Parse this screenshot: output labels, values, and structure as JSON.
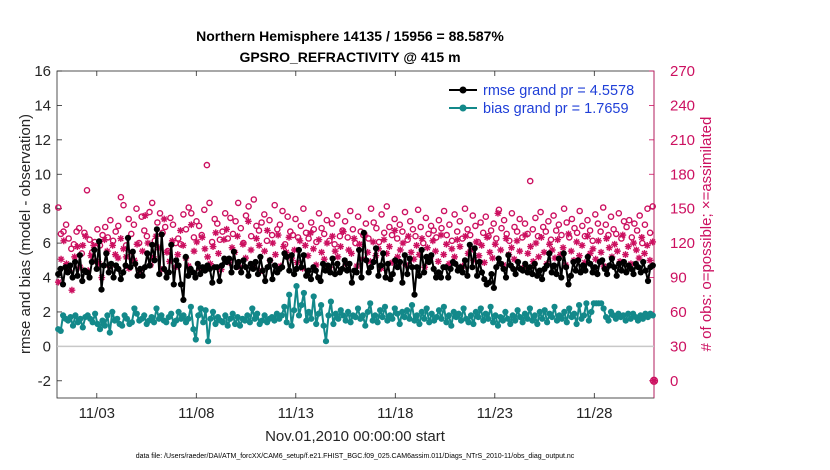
{
  "chart_data": {
    "type": "line",
    "title": "Northern Hemisphere 14135 / 15956 = 88.587%",
    "subtitle": "GPSRO_REFRACTIVITY @ 415 m",
    "xlabel": "Nov.01,2010 00:00:00 start",
    "ylabel_left": "rmse and bias (model - observation)",
    "ylabel_right": "# of obs: o=possible; ×=assimilated",
    "footnote": "data file: /Users/raeder/DAI/ATM_forcXX/CAM6_setup/f.e21.FHIST_BGC.f09_025.CAM6assim.011/Diags_NTrS_2010-11/obs_diag_output.nc",
    "x_day_range": [
      1.0,
      31.0
    ],
    "ylim_left": [
      -3,
      16
    ],
    "ylim_right": [
      -15,
      270
    ],
    "x_tick_days": [
      3,
      8,
      13,
      18,
      23,
      28
    ],
    "x_tick_labels": [
      "11/03",
      "11/08",
      "11/13",
      "11/18",
      "11/23",
      "11/28"
    ],
    "y_left_ticks": [
      -2,
      0,
      2,
      4,
      6,
      8,
      10,
      12,
      14,
      16
    ],
    "y_left_tick_labels": [
      "-2",
      "0",
      "2",
      "4",
      "6",
      "8",
      "10",
      "12",
      "14",
      "16"
    ],
    "y_right_ticks": [
      0,
      30,
      60,
      90,
      120,
      150,
      180,
      210,
      240,
      270
    ],
    "y_right_tick_labels": [
      "0",
      "30",
      "60",
      "90",
      "120",
      "150",
      "180",
      "210",
      "240",
      "270"
    ],
    "zero_line": 0,
    "series": [
      {
        "name": "rmse grand pr = 4.5578",
        "axis": "left",
        "color": "#000000",
        "marker": "filled-circle",
        "values": [
          4.2,
          4.5,
          3.6,
          4.6,
          4.3,
          4.7,
          4.0,
          4.9,
          4.1,
          5.3,
          3.8,
          4.4,
          4.3,
          4.0,
          4.9,
          5.6,
          4.5,
          6.1,
          3.3,
          4.7,
          5.4,
          4.3,
          4.8,
          4.0,
          4.7,
          4.5,
          3.9,
          4.3,
          4.7,
          6.3,
          4.6,
          5.5,
          4.8,
          4.1,
          4.5,
          4.1,
          4.6,
          5.4,
          4.7,
          5.9,
          5.0,
          6.8,
          4.2,
          6.5,
          4.5,
          4.0,
          4.3,
          5.9,
          3.6,
          5.0,
          4.7,
          3.6,
          2.7,
          5.2,
          4.1,
          4.5,
          4.3,
          4.0,
          4.8,
          4.2,
          4.6,
          4.4,
          4.7,
          4.5,
          3.7,
          4.6,
          4.6,
          3.8,
          4.7,
          5.1,
          4.9,
          5.1,
          4.3,
          5.5,
          4.6,
          4.9,
          4.3,
          5.0,
          4.6,
          4.1,
          4.8,
          4.5,
          4.9,
          4.2,
          5.2,
          4.4,
          3.8,
          4.6,
          5.0,
          3.9,
          4.7,
          4.3,
          4.5,
          4.6,
          5.4,
          5.2,
          4.4,
          5.3,
          4.2,
          4.5,
          5.6,
          4.6,
          5.3,
          4.1,
          4.4,
          3.9,
          4.6,
          4.4,
          4.0,
          3.8,
          4.8,
          4.4,
          4.7,
          4.3,
          5.1,
          4.2,
          4.8,
          4.3,
          4.5,
          5.0,
          4.4,
          4.8,
          3.7,
          4.4,
          4.3,
          5.6,
          4.0,
          6.6,
          5.0,
          4.3,
          4.6,
          4.9,
          5.7,
          4.1,
          4.7,
          5.4,
          4.0,
          4.8,
          3.9,
          4.2,
          5.0,
          4.6,
          4.9,
          3.7,
          5.3,
          4.2,
          5.1,
          4.6,
          3.0,
          4.6,
          4.1,
          5.6,
          4.3,
          5.2,
          4.9,
          5.3,
          4.5,
          4.0,
          4.3,
          4.0,
          4.6,
          4.6,
          4.0,
          4.5,
          4.9,
          4.8,
          4.4,
          4.6,
          4.3,
          5.0,
          4.1,
          5.9,
          4.6,
          5.7,
          4.1,
          4.9,
          4.3,
          3.9,
          3.6,
          3.7,
          4.2,
          3.4,
          4.6,
          5.1,
          4.8,
          4.5,
          4.0,
          5.3,
          4.7,
          4.5,
          4.2,
          4.9,
          4.5,
          4.4,
          4.8,
          4.3,
          4.6,
          4.2,
          4.8,
          4.1,
          4.4,
          3.9,
          4.5,
          4.7,
          5.4,
          4.3,
          4.7,
          4.2,
          5.1,
          4.0,
          5.4,
          4.6,
          3.6,
          4.1,
          4.9,
          4.4,
          5.0,
          4.3,
          4.7,
          4.4,
          5.2,
          4.8,
          4.3,
          4.6,
          4.2,
          4.9,
          5.0,
          4.5,
          4.2,
          4.7,
          5.1,
          4.6,
          4.1,
          4.8,
          4.4,
          4.9,
          4.3,
          4.7,
          4.5,
          4.2,
          4.8,
          4.6,
          4.3,
          4.9,
          4.4,
          3.8,
          4.6,
          4.7
        ]
      },
      {
        "name": "bias grand pr = 1.7659",
        "axis": "left",
        "color": "#13898a",
        "marker": "filled-circle",
        "values": [
          1.0,
          0.9,
          1.8,
          1.6,
          1.5,
          1.7,
          1.2,
          1.8,
          1.4,
          1.6,
          1.1,
          1.7,
          1.8,
          1.6,
          1.4,
          1.9,
          1.3,
          1.0,
          1.5,
          1.2,
          1.8,
          0.8,
          2.0,
          1.5,
          1.6,
          1.3,
          1.2,
          1.8,
          1.6,
          1.3,
          1.4,
          2.2,
          1.9,
          1.5,
          1.6,
          1.8,
          1.3,
          1.5,
          1.7,
          1.4,
          2.2,
          1.6,
          1.8,
          1.5,
          1.4,
          1.7,
          1.9,
          1.3,
          1.5,
          2.0,
          1.6,
          1.8,
          1.4,
          1.6,
          2.3,
          1.0,
          0.4,
          1.8,
          2.2,
          1.4,
          2.1,
          0.3,
          1.6,
          2.0,
          1.3,
          1.7,
          1.5,
          1.4,
          1.8,
          1.2,
          1.6,
          1.9,
          1.3,
          1.7,
          1.2,
          1.6,
          1.5,
          1.8,
          1.4,
          2.2,
          1.6,
          1.9,
          1.3,
          1.5,
          1.8,
          1.4,
          1.6,
          1.7,
          1.5,
          1.9,
          1.6,
          1.8,
          2.3,
          1.4,
          3.0,
          1.2,
          2.1,
          3.5,
          1.8,
          2.4,
          3.1,
          1.5,
          2.0,
          1.6,
          2.9,
          1.3,
          1.9,
          2.4,
          1.2,
          0.3,
          1.8,
          2.6,
          1.3,
          1.9,
          1.6,
          2.1,
          1.8,
          1.5,
          2.0,
          1.4,
          1.8,
          1.7,
          2.2,
          1.6,
          1.8,
          1.2,
          2.0,
          2.5,
          1.5,
          1.8,
          1.4,
          2.1,
          1.7,
          2.3,
          1.5,
          1.8,
          1.6,
          2.2,
          1.9,
          1.3,
          2.0,
          1.7,
          2.1,
          1.6,
          2.4,
          1.5,
          1.8,
          1.3,
          2.0,
          1.6,
          2.2,
          1.4,
          1.9,
          1.5,
          1.7,
          2.1,
          1.6,
          2.3,
          1.4,
          1.8,
          1.2,
          2.0,
          1.7,
          1.9,
          1.5,
          2.2,
          1.6,
          1.4,
          1.8,
          1.3,
          2.0,
          1.7,
          2.2,
          1.5,
          1.9,
          1.6,
          2.3,
          1.4,
          1.8,
          1.2,
          1.7,
          1.5,
          2.0,
          1.6,
          1.3,
          1.8,
          1.5,
          2.1,
          1.7,
          1.4,
          1.9,
          1.6,
          2.2,
          1.5,
          1.8,
          1.3,
          2.0,
          1.6,
          2.1,
          1.4,
          1.9,
          1.7,
          2.3,
          1.5,
          1.8,
          1.6,
          2.0,
          1.4,
          2.2,
          1.7,
          1.9,
          1.3,
          2.4,
          1.6,
          1.8,
          2.5,
          1.5,
          2.0,
          2.5,
          2.5,
          2.5,
          2.5,
          2.2,
          1.7,
          1.5,
          2.0,
          1.8,
          1.6,
          1.9,
          1.7,
          1.8,
          1.5,
          1.9,
          1.6,
          1.9,
          1.7,
          1.5,
          1.8,
          1.6,
          1.9,
          1.7,
          1.9,
          1.8
        ]
      },
      {
        "name": "obs possible",
        "axis": "right",
        "color": "#cc1060",
        "marker": "open-circle",
        "values": [
          151,
          128,
          130,
          136,
          124,
          115,
          119,
          130,
          133,
          111,
          129,
          166,
          123,
          112,
          121,
          132,
          118,
          127,
          134,
          125,
          140,
          122,
          130,
          135,
          160,
          153,
          118,
          141,
          128,
          136,
          150,
          120,
          143,
          131,
          126,
          147,
          155,
          122,
          138,
          146,
          129,
          134,
          113,
          142,
          136,
          120,
          124,
          119,
          145,
          132,
          151,
          146,
          125,
          139,
          135,
          127,
          149,
          188,
          155,
          121,
          141,
          137,
          123,
          130,
          146,
          124,
          142,
          128,
          139,
          155,
          133,
          120,
          144,
          152,
          126,
          158,
          135,
          131,
          138,
          145,
          122,
          140,
          127,
          153,
          132,
          136,
          148,
          119,
          143,
          130,
          127,
          141,
          125,
          135,
          150,
          129,
          124,
          138,
          132,
          121,
          146,
          133,
          128,
          140,
          122,
          137,
          119,
          144,
          126,
          131,
          139,
          125,
          148,
          132,
          120,
          143,
          130,
          127,
          137,
          124,
          150,
          138,
          133,
          121,
          145,
          129,
          152,
          134,
          127,
          141,
          124,
          136,
          130,
          147,
          123,
          139,
          132,
          126,
          149,
          134,
          120,
          142,
          128,
          135,
          131,
          125,
          140,
          133,
          148,
          127,
          136,
          122,
          145,
          130,
          139,
          124,
          150,
          132,
          127,
          144,
          135,
          121,
          138,
          129,
          143,
          126,
          131,
          137,
          124,
          149,
          133,
          140,
          128,
          122,
          146,
          134,
          130,
          141,
          125,
          137,
          128,
          174,
          132,
          142,
          126,
          147,
          134,
          130,
          139,
          123,
          144,
          131,
          136,
          127,
          150,
          138,
          125,
          141,
          133,
          129,
          148,
          135,
          126,
          140,
          131,
          122,
          145,
          137,
          130,
          151,
          136,
          127,
          143,
          132,
          128,
          146,
          124,
          139,
          134,
          140,
          125,
          137,
          131,
          144,
          120,
          136,
          150,
          129,
          152
        ]
      },
      {
        "name": "obs assimilated",
        "axis": "right",
        "color": "#cc1060",
        "marker": "asterisk",
        "values": [
          86,
          106,
          122,
          102,
          96,
          79,
          108,
          117,
          99,
          118,
          126,
          96,
          109,
          118,
          104,
          102,
          90,
          123,
          113,
          99,
          118,
          110,
          107,
          124,
          115,
          108,
          98,
          112,
          105,
          119,
          96,
          113,
          144,
          120,
          101,
          108,
          126,
          116,
          97,
          141,
          112,
          104,
          122,
          99,
          110,
          131,
          118,
          107,
          100,
          136,
          113,
          121,
          98,
          125,
          115,
          108,
          102,
          117,
          129,
          111,
          97,
          123,
          132,
          103,
          116,
          112,
          126,
          99,
          119,
          107,
          139,
          114,
          101,
          124,
          118,
          96,
          113,
          131,
          105,
          120,
          110,
          127,
          100,
          117,
          112,
          125,
          107,
          114,
          103,
          122,
          98,
          118,
          109,
          129,
          115,
          101,
          123,
          112,
          106,
          120,
          99,
          126,
          113,
          108,
          117,
          130,
          102,
          114,
          111,
          124,
          100,
          119,
          106,
          127,
          112,
          104,
          121,
          109,
          115,
          98,
          123,
          111,
          117,
          103,
          131,
          108,
          114,
          120,
          101,
          126,
          112,
          106,
          118,
          110,
          124,
          99,
          116,
          107,
          122,
          113,
          104,
          127,
          110,
          119,
          102,
          115,
          108,
          123,
          117,
          100,
          126,
          111,
          114,
          105,
          121,
          109,
          118,
          103,
          125,
          112,
          107,
          119,
          146,
          114,
          101,
          124,
          110,
          116,
          106,
          122,
          113,
          98,
          127,
          111,
          117,
          104,
          120,
          108,
          125,
          112,
          102,
          119,
          114,
          107,
          123,
          110,
          116,
          101,
          128,
          113,
          105,
          121,
          109,
          118,
          103,
          126,
          111,
          115,
          106,
          122,
          112,
          100,
          124,
          116,
          108,
          119,
          113,
          104,
          127,
          110,
          117,
          102,
          120,
          114,
          107,
          125,
          111,
          118,
          105,
          121
        ]
      }
    ],
    "extra_points": [
      {
        "name": "obs possible / assimilated at end",
        "axis": "right",
        "day": 31.0,
        "value": 0,
        "marker": "open-circle"
      }
    ]
  }
}
